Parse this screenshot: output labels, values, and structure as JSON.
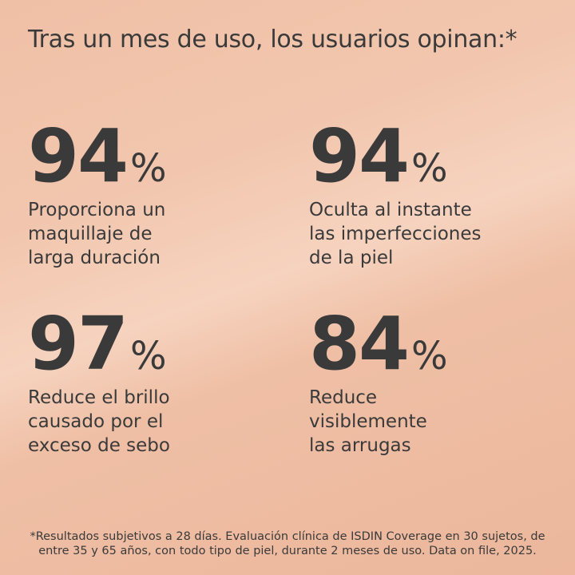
{
  "title": "Tras un mes de uso, los usuarios opinan:*",
  "stats": [
    {
      "value": 94,
      "unit": "%",
      "lines": [
        "Proporciona un",
        "maquillaje de",
        "larga duración"
      ]
    },
    {
      "value": 94,
      "unit": "%",
      "lines": [
        "Oculta al instante",
        "las imperfecciones",
        "de la piel"
      ]
    },
    {
      "value": 97,
      "unit": "%",
      "lines": [
        "Reduce el brillo",
        "causado por el",
        "exceso de sebo"
      ]
    },
    {
      "value": 84,
      "unit": "%",
      "lines": [
        "Reduce",
        "visiblemente",
        "las arrugas"
      ]
    }
  ],
  "footnote": [
    "*Resultados subjetivos a 28 días. Evaluación clínica de ISDIN Coverage en 30 sujetos, de",
    "entre 35 y 65 años, con todo tipo de piel, durante 2 meses de uso. Data on file, 2025."
  ]
}
